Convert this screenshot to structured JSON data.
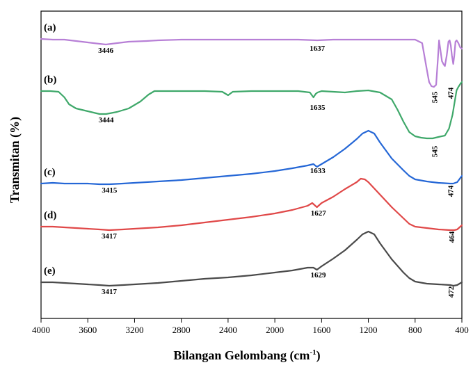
{
  "chart_data": {
    "type": "line",
    "title": "",
    "xlabel": "Bilangan Gelombang (cm",
    "xlabel_sup": "-1",
    "xlabel_end": ")",
    "ylabel": "Transmitan (%)",
    "xlim": [
      4000,
      400
    ],
    "x_reversed": true,
    "y_ticks_shown": false,
    "grid": false,
    "x_ticks": [
      "4000",
      "3600",
      "3200",
      "2800",
      "2400",
      "2000",
      "1600",
      "1200",
      "800",
      "400"
    ],
    "series": [
      {
        "name": "(a)",
        "color": "#b77fd6",
        "points": [
          [
            4000,
            56
          ],
          [
            3900,
            57
          ],
          [
            3800,
            57
          ],
          [
            3700,
            59
          ],
          [
            3600,
            61
          ],
          [
            3500,
            63
          ],
          [
            3446,
            64
          ],
          [
            3350,
            62
          ],
          [
            3250,
            60
          ],
          [
            3100,
            59
          ],
          [
            3000,
            58
          ],
          [
            2800,
            57
          ],
          [
            2600,
            57
          ],
          [
            2400,
            57
          ],
          [
            2200,
            57
          ],
          [
            2000,
            57
          ],
          [
            1800,
            57
          ],
          [
            1637,
            58
          ],
          [
            1500,
            57
          ],
          [
            1300,
            57
          ],
          [
            1100,
            57
          ],
          [
            950,
            57
          ],
          [
            800,
            57
          ],
          [
            740,
            62
          ],
          [
            700,
            100
          ],
          [
            680,
            118
          ],
          [
            660,
            124
          ],
          [
            640,
            125
          ],
          [
            620,
            122
          ],
          [
            605,
            85
          ],
          [
            595,
            58
          ],
          [
            585,
            70
          ],
          [
            570,
            88
          ],
          [
            555,
            93
          ],
          [
            545,
            95
          ],
          [
            530,
            80
          ],
          [
            515,
            60
          ],
          [
            505,
            58
          ],
          [
            495,
            65
          ],
          [
            485,
            80
          ],
          [
            474,
            92
          ],
          [
            465,
            80
          ],
          [
            455,
            60
          ],
          [
            445,
            58
          ],
          [
            430,
            62
          ],
          [
            415,
            68
          ],
          [
            400,
            70
          ]
        ],
        "peaks": [
          {
            "label": "3446",
            "x": 3446,
            "y": 76,
            "vertical": false
          },
          {
            "label": "1637",
            "x": 1637,
            "y": 73,
            "vertical": false
          },
          {
            "label": "545",
            "x": 610,
            "y": 140,
            "vertical": true
          },
          {
            "label": "474",
            "x": 474,
            "y": 134,
            "vertical": true
          }
        ]
      },
      {
        "name": "(b)",
        "color": "#3fa86a",
        "points": [
          [
            4000,
            131
          ],
          [
            3920,
            131
          ],
          [
            3850,
            132
          ],
          [
            3800,
            140
          ],
          [
            3760,
            150
          ],
          [
            3700,
            156
          ],
          [
            3600,
            160
          ],
          [
            3500,
            164
          ],
          [
            3444,
            164
          ],
          [
            3350,
            161
          ],
          [
            3250,
            156
          ],
          [
            3150,
            146
          ],
          [
            3080,
            136
          ],
          [
            3030,
            131
          ],
          [
            2900,
            131
          ],
          [
            2750,
            131
          ],
          [
            2600,
            131
          ],
          [
            2450,
            132
          ],
          [
            2400,
            137
          ],
          [
            2360,
            132
          ],
          [
            2200,
            131
          ],
          [
            2000,
            131
          ],
          [
            1800,
            131
          ],
          [
            1700,
            133
          ],
          [
            1670,
            140
          ],
          [
            1650,
            135
          ],
          [
            1635,
            133
          ],
          [
            1600,
            131
          ],
          [
            1500,
            132
          ],
          [
            1400,
            133
          ],
          [
            1300,
            131
          ],
          [
            1200,
            130
          ],
          [
            1100,
            133
          ],
          [
            1000,
            143
          ],
          [
            950,
            158
          ],
          [
            900,
            175
          ],
          [
            850,
            190
          ],
          [
            800,
            196
          ],
          [
            750,
            198
          ],
          [
            700,
            199
          ],
          [
            650,
            199
          ],
          [
            600,
            197
          ],
          [
            545,
            195
          ],
          [
            510,
            185
          ],
          [
            480,
            165
          ],
          [
            460,
            145
          ],
          [
            445,
            130
          ],
          [
            430,
            125
          ],
          [
            410,
            120
          ],
          [
            400,
            118
          ]
        ],
        "peaks": [
          {
            "label": "3444",
            "x": 3444,
            "y": 176,
            "vertical": false
          },
          {
            "label": "1635",
            "x": 1635,
            "y": 158,
            "vertical": false
          },
          {
            "label": "545",
            "x": 610,
            "y": 218,
            "vertical": true
          }
        ]
      },
      {
        "name": "(c)",
        "color": "#2567d6",
        "points": [
          [
            4000,
            264
          ],
          [
            3900,
            263
          ],
          [
            3800,
            264
          ],
          [
            3700,
            264
          ],
          [
            3600,
            264
          ],
          [
            3500,
            265
          ],
          [
            3415,
            265
          ],
          [
            3300,
            264
          ],
          [
            3200,
            263
          ],
          [
            3000,
            261
          ],
          [
            2800,
            259
          ],
          [
            2600,
            256
          ],
          [
            2400,
            253
          ],
          [
            2200,
            250
          ],
          [
            2000,
            246
          ],
          [
            1850,
            242
          ],
          [
            1720,
            238
          ],
          [
            1670,
            236
          ],
          [
            1640,
            240
          ],
          [
            1600,
            236
          ],
          [
            1500,
            226
          ],
          [
            1400,
            214
          ],
          [
            1300,
            200
          ],
          [
            1250,
            192
          ],
          [
            1200,
            188
          ],
          [
            1150,
            192
          ],
          [
            1100,
            205
          ],
          [
            1000,
            228
          ],
          [
            900,
            245
          ],
          [
            850,
            253
          ],
          [
            800,
            258
          ],
          [
            700,
            261
          ],
          [
            600,
            263
          ],
          [
            500,
            264
          ],
          [
            474,
            264
          ],
          [
            440,
            262
          ],
          [
            400,
            253
          ]
        ],
        "peaks": [
          {
            "label": "3415",
            "x": 3415,
            "y": 277,
            "vertical": false
          },
          {
            "label": "1633",
            "x": 1633,
            "y": 249,
            "vertical": false
          },
          {
            "label": "474",
            "x": 474,
            "y": 275,
            "vertical": true
          }
        ]
      },
      {
        "name": "(d)",
        "color": "#e04848",
        "points": [
          [
            4000,
            326
          ],
          [
            3900,
            326
          ],
          [
            3800,
            327
          ],
          [
            3700,
            328
          ],
          [
            3600,
            329
          ],
          [
            3500,
            330
          ],
          [
            3417,
            331
          ],
          [
            3300,
            330
          ],
          [
            3200,
            329
          ],
          [
            3000,
            327
          ],
          [
            2800,
            324
          ],
          [
            2600,
            320
          ],
          [
            2400,
            316
          ],
          [
            2200,
            312
          ],
          [
            2000,
            307
          ],
          [
            1850,
            302
          ],
          [
            1720,
            296
          ],
          [
            1680,
            292
          ],
          [
            1640,
            298
          ],
          [
            1600,
            292
          ],
          [
            1500,
            283
          ],
          [
            1400,
            272
          ],
          [
            1300,
            262
          ],
          [
            1265,
            257
          ],
          [
            1230,
            258
          ],
          [
            1200,
            262
          ],
          [
            1100,
            280
          ],
          [
            1000,
            298
          ],
          [
            900,
            314
          ],
          [
            850,
            322
          ],
          [
            800,
            326
          ],
          [
            700,
            328
          ],
          [
            600,
            330
          ],
          [
            500,
            331
          ],
          [
            464,
            331
          ],
          [
            440,
            330
          ],
          [
            400,
            324
          ]
        ],
        "peaks": [
          {
            "label": "3417",
            "x": 3417,
            "y": 343,
            "vertical": false
          },
          {
            "label": "1627",
            "x": 1627,
            "y": 310,
            "vertical": false
          },
          {
            "label": "464",
            "x": 464,
            "y": 341,
            "vertical": true
          }
        ]
      },
      {
        "name": "(e)",
        "color": "#4a4a4a",
        "points": [
          [
            4000,
            406
          ],
          [
            3900,
            406
          ],
          [
            3800,
            407
          ],
          [
            3700,
            408
          ],
          [
            3600,
            409
          ],
          [
            3500,
            410
          ],
          [
            3417,
            411
          ],
          [
            3300,
            410
          ],
          [
            3200,
            409
          ],
          [
            3000,
            407
          ],
          [
            2800,
            404
          ],
          [
            2600,
            401
          ],
          [
            2400,
            399
          ],
          [
            2200,
            396
          ],
          [
            2000,
            392
          ],
          [
            1850,
            389
          ],
          [
            1720,
            385
          ],
          [
            1670,
            385
          ],
          [
            1640,
            388
          ],
          [
            1600,
            383
          ],
          [
            1500,
            372
          ],
          [
            1400,
            360
          ],
          [
            1300,
            345
          ],
          [
            1250,
            337
          ],
          [
            1200,
            333
          ],
          [
            1150,
            337
          ],
          [
            1100,
            350
          ],
          [
            1000,
            373
          ],
          [
            900,
            392
          ],
          [
            850,
            400
          ],
          [
            800,
            405
          ],
          [
            700,
            408
          ],
          [
            600,
            409
          ],
          [
            500,
            410
          ],
          [
            472,
            411
          ],
          [
            440,
            410
          ],
          [
            400,
            406
          ]
        ],
        "peaks": [
          {
            "label": "3417",
            "x": 3417,
            "y": 423,
            "vertical": false
          },
          {
            "label": "1629",
            "x": 1629,
            "y": 399,
            "vertical": false
          },
          {
            "label": "472",
            "x": 472,
            "y": 420,
            "vertical": true
          }
        ]
      }
    ]
  }
}
